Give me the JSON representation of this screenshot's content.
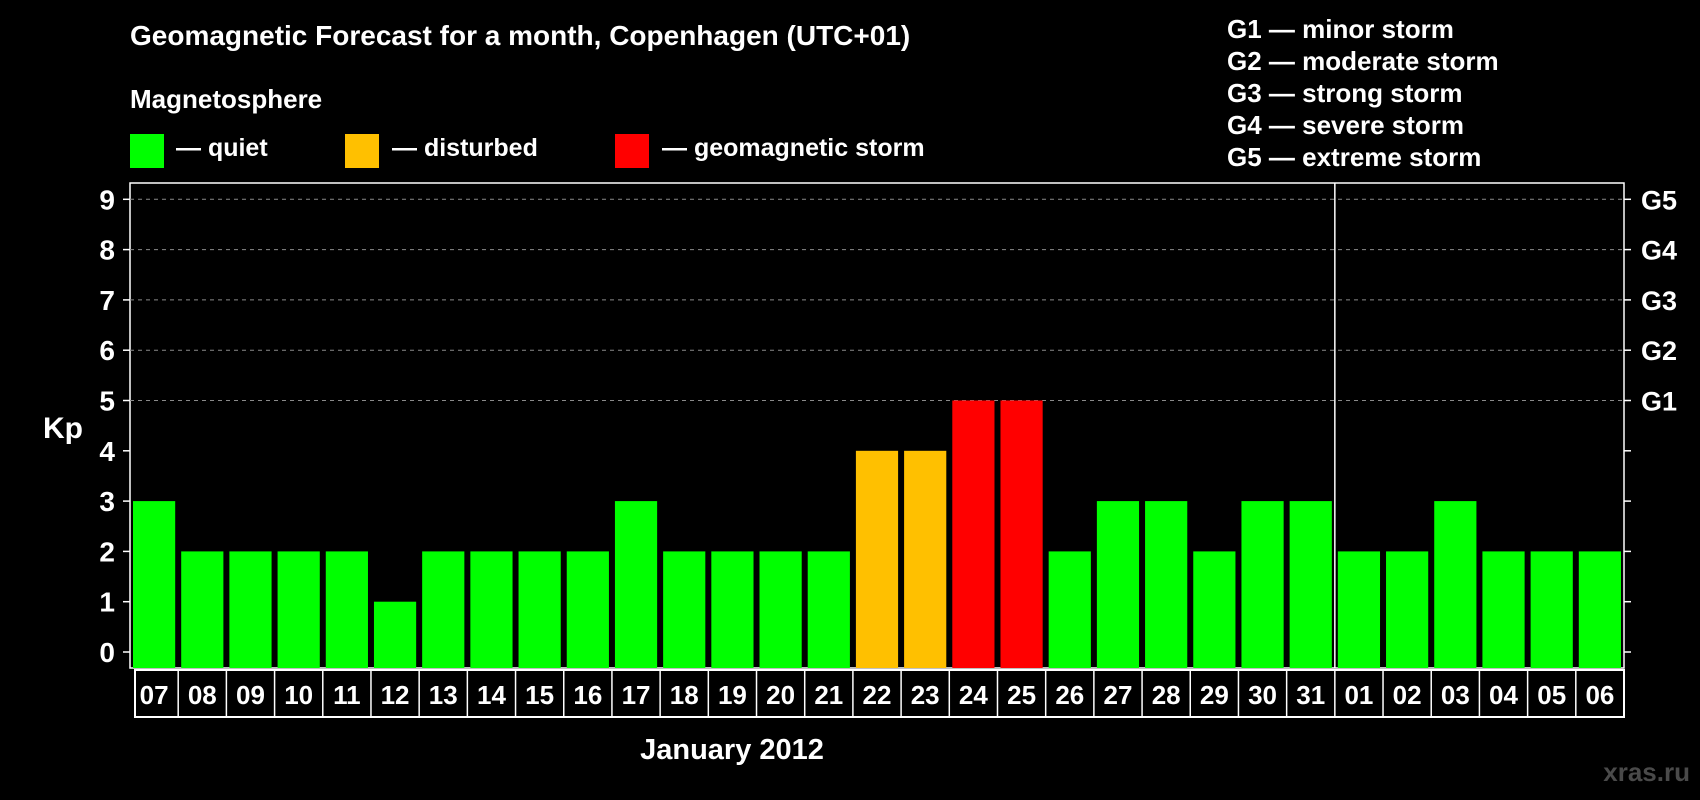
{
  "header": {
    "title": "Geomagnetic Forecast for a month, Copenhagen (UTC+01)",
    "subtitle": "Magnetosphere"
  },
  "legend": [
    {
      "label": "— quiet",
      "color": "#00ff00"
    },
    {
      "label": "— disturbed",
      "color": "#ffc000"
    },
    {
      "label": "— geomagnetic storm",
      "color": "#ff0000"
    }
  ],
  "storm_scale": [
    "G1 — minor storm",
    "G2 — moderate storm",
    "G3 — strong storm",
    "G4 — severe storm",
    "G5 — extreme storm"
  ],
  "watermark": "xras.ru",
  "chart_data": {
    "type": "bar",
    "ylabel": "Kp",
    "xlabel": "January 2012",
    "ylim": [
      0,
      9
    ],
    "yticks": [
      "0",
      "1",
      "2",
      "3",
      "4",
      "5",
      "6",
      "7",
      "8",
      "9"
    ],
    "right_ticks": [
      {
        "value": 5,
        "label": "G1"
      },
      {
        "value": 6,
        "label": "G2"
      },
      {
        "value": 7,
        "label": "G3"
      },
      {
        "value": 8,
        "label": "G4"
      },
      {
        "value": 9,
        "label": "G5"
      }
    ],
    "grid": "dashed at 5–9",
    "month_divider_after": "31",
    "categories": [
      "07",
      "08",
      "09",
      "10",
      "11",
      "12",
      "13",
      "14",
      "15",
      "16",
      "17",
      "18",
      "19",
      "20",
      "21",
      "22",
      "23",
      "24",
      "25",
      "26",
      "27",
      "28",
      "29",
      "30",
      "31",
      "01",
      "02",
      "03",
      "04",
      "05",
      "06"
    ],
    "values": [
      3,
      2,
      2,
      2,
      2,
      1,
      2,
      2,
      2,
      2,
      3,
      2,
      2,
      2,
      2,
      4,
      4,
      5,
      5,
      2,
      3,
      3,
      2,
      3,
      3,
      2,
      2,
      3,
      2,
      2,
      2
    ],
    "colors": {
      "quiet": "#00ff00",
      "disturbed": "#ffc000",
      "storm": "#ff0000"
    }
  }
}
